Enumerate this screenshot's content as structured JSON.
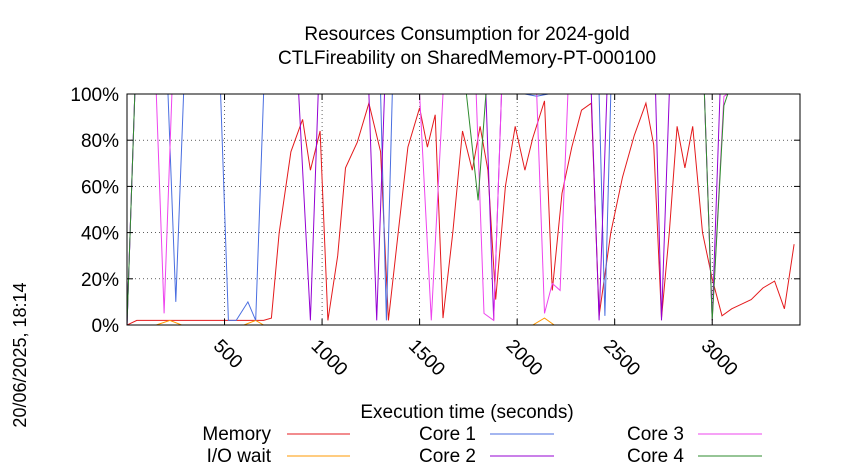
{
  "chart_data": {
    "type": "line",
    "title": "Resources Consumption for 2024-gold",
    "subtitle": "CTLFireability on SharedMemory-PT-000100",
    "xlabel": "Execution time (seconds)",
    "ylabel": "",
    "side_label": "20/06/2025, 18:14",
    "xlim": [
      0,
      3450
    ],
    "ylim": [
      0,
      100
    ],
    "x_ticks": [
      "500",
      "1000",
      "1500",
      "2000",
      "2500",
      "3000"
    ],
    "x_tick_values": [
      500,
      1000,
      1500,
      2000,
      2500,
      3000
    ],
    "y_ticks": [
      "0%",
      "20%",
      "40%",
      "60%",
      "80%",
      "100%"
    ],
    "y_tick_values": [
      0,
      20,
      40,
      60,
      80,
      100
    ],
    "grid": "dotted",
    "legend_position": "bottom",
    "series": [
      {
        "name": "Memory",
        "color": "#e41a1c",
        "points": [
          [
            0,
            0
          ],
          [
            50,
            2
          ],
          [
            150,
            2
          ],
          [
            250,
            2
          ],
          [
            400,
            2
          ],
          [
            500,
            2
          ],
          [
            600,
            2
          ],
          [
            700,
            2
          ],
          [
            740,
            3
          ],
          [
            780,
            40
          ],
          [
            840,
            75
          ],
          [
            900,
            89
          ],
          [
            940,
            67
          ],
          [
            990,
            84
          ],
          [
            1030,
            2
          ],
          [
            1080,
            30
          ],
          [
            1120,
            68
          ],
          [
            1180,
            79
          ],
          [
            1240,
            96
          ],
          [
            1300,
            75
          ],
          [
            1340,
            2
          ],
          [
            1390,
            40
          ],
          [
            1440,
            77
          ],
          [
            1500,
            94
          ],
          [
            1540,
            77
          ],
          [
            1580,
            91
          ],
          [
            1620,
            3
          ],
          [
            1670,
            40
          ],
          [
            1720,
            84
          ],
          [
            1770,
            67
          ],
          [
            1810,
            86
          ],
          [
            1850,
            67
          ],
          [
            1890,
            11
          ],
          [
            1940,
            60
          ],
          [
            1990,
            86
          ],
          [
            2040,
            67
          ],
          [
            2080,
            81
          ],
          [
            2140,
            97
          ],
          [
            2180,
            15
          ],
          [
            2230,
            57
          ],
          [
            2280,
            77
          ],
          [
            2330,
            93
          ],
          [
            2380,
            96
          ],
          [
            2420,
            4
          ],
          [
            2480,
            40
          ],
          [
            2540,
            64
          ],
          [
            2600,
            82
          ],
          [
            2660,
            96
          ],
          [
            2700,
            78
          ],
          [
            2740,
            3
          ],
          [
            2780,
            40
          ],
          [
            2820,
            86
          ],
          [
            2860,
            68
          ],
          [
            2900,
            86
          ],
          [
            2950,
            40
          ],
          [
            3000,
            20
          ],
          [
            3050,
            4
          ],
          [
            3100,
            7
          ],
          [
            3150,
            9
          ],
          [
            3200,
            11
          ],
          [
            3260,
            16
          ],
          [
            3320,
            19
          ],
          [
            3370,
            7
          ],
          [
            3420,
            35
          ]
        ]
      },
      {
        "name": "I/O wait",
        "color": "#ff9900",
        "points": [
          [
            0,
            0
          ],
          [
            150,
            0
          ],
          [
            220,
            2
          ],
          [
            280,
            0
          ],
          [
            600,
            0
          ],
          [
            660,
            2
          ],
          [
            700,
            0
          ],
          [
            2080,
            0
          ],
          [
            2140,
            3
          ],
          [
            2190,
            0
          ],
          [
            3420,
            0
          ]
        ]
      },
      {
        "name": "Core 1",
        "color": "#4a6ee0",
        "points": [
          [
            0,
            0
          ],
          [
            40,
            100
          ],
          [
            210,
            100
          ],
          [
            250,
            10
          ],
          [
            290,
            100
          ],
          [
            480,
            100
          ],
          [
            520,
            2
          ],
          [
            560,
            2
          ],
          [
            620,
            10
          ],
          [
            660,
            2
          ],
          [
            700,
            100
          ],
          [
            1300,
            100
          ],
          [
            1330,
            2
          ],
          [
            1360,
            100
          ],
          [
            2040,
            100
          ],
          [
            2100,
            99
          ],
          [
            2160,
            100
          ],
          [
            2420,
            100
          ],
          [
            2450,
            4
          ],
          [
            2480,
            100
          ],
          [
            3420,
            100
          ]
        ]
      },
      {
        "name": "Core 2",
        "color": "#9400d3",
        "points": [
          [
            0,
            0
          ],
          [
            40,
            100
          ],
          [
            880,
            100
          ],
          [
            940,
            2
          ],
          [
            980,
            100
          ],
          [
            1240,
            100
          ],
          [
            1280,
            2
          ],
          [
            1320,
            100
          ],
          [
            1840,
            100
          ],
          [
            1880,
            2
          ],
          [
            1920,
            100
          ],
          [
            2380,
            100
          ],
          [
            2420,
            2
          ],
          [
            2460,
            100
          ],
          [
            2710,
            100
          ],
          [
            2740,
            2
          ],
          [
            2780,
            100
          ],
          [
            2960,
            100
          ],
          [
            3000,
            2
          ],
          [
            3040,
            100
          ],
          [
            3420,
            100
          ]
        ]
      },
      {
        "name": "Core 3",
        "color": "#ee44ee",
        "points": [
          [
            0,
            0
          ],
          [
            40,
            100
          ],
          [
            150,
            100
          ],
          [
            190,
            5
          ],
          [
            230,
            100
          ],
          [
            1500,
            100
          ],
          [
            1560,
            2
          ],
          [
            1620,
            100
          ],
          [
            1790,
            100
          ],
          [
            1830,
            5
          ],
          [
            1880,
            2
          ],
          [
            1920,
            100
          ],
          [
            2100,
            100
          ],
          [
            2140,
            5
          ],
          [
            2180,
            18
          ],
          [
            2220,
            15
          ],
          [
            2260,
            100
          ],
          [
            2960,
            100
          ],
          [
            3000,
            2
          ],
          [
            3060,
            99
          ],
          [
            3080,
            100
          ],
          [
            3420,
            100
          ]
        ]
      },
      {
        "name": "Core 4",
        "color": "#2e8b2e",
        "points": [
          [
            0,
            0
          ],
          [
            40,
            100
          ],
          [
            1740,
            100
          ],
          [
            1800,
            54
          ],
          [
            1840,
            100
          ],
          [
            2960,
            100
          ],
          [
            3000,
            2
          ],
          [
            3060,
            95
          ],
          [
            3080,
            100
          ],
          [
            3420,
            100
          ]
        ]
      }
    ]
  }
}
